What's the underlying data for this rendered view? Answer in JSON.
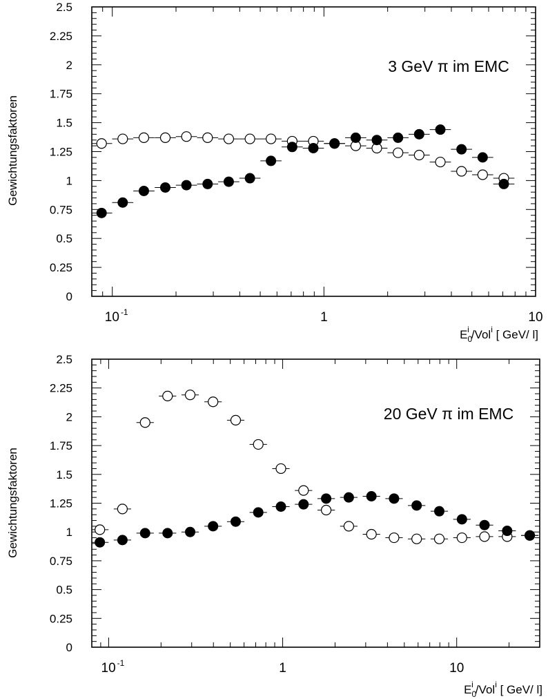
{
  "chart_data": [
    {
      "type": "scatter",
      "title": "",
      "annotation": "3 GeV π im EMC",
      "ylabel": "Gewichtungsfaktoren",
      "xlabel": {
        "base": "E",
        "sub": "0",
        "sup1": "i",
        "mid": "/Vol",
        "sup2": "i",
        "unit": " [ GeV/ l]"
      },
      "xscale": "log",
      "xlim": [
        0.08,
        10
      ],
      "ylim": [
        0,
        2.5
      ],
      "yticks": [
        "0",
        "0.25",
        "0.5",
        "0.75",
        "1",
        "1.25",
        "1.5",
        "1.75",
        "2",
        "2.25",
        "2.5"
      ],
      "xticks": [
        {
          "value": 0.1,
          "base": "10",
          "exp": "-1"
        },
        {
          "value": 1,
          "base": "1",
          "exp": ""
        },
        {
          "value": 10,
          "base": "10",
          "exp": ""
        }
      ],
      "series": [
        {
          "marker": "open-circle",
          "points": [
            [
              0.089,
              1.32
            ],
            [
              0.112,
              1.36
            ],
            [
              0.141,
              1.37
            ],
            [
              0.178,
              1.37
            ],
            [
              0.224,
              1.38
            ],
            [
              0.282,
              1.37
            ],
            [
              0.355,
              1.36
            ],
            [
              0.447,
              1.36
            ],
            [
              0.562,
              1.36
            ],
            [
              0.708,
              1.34
            ],
            [
              0.891,
              1.34
            ],
            [
              1.122,
              1.32
            ],
            [
              1.413,
              1.3
            ],
            [
              1.778,
              1.28
            ],
            [
              2.239,
              1.24
            ],
            [
              2.818,
              1.22
            ],
            [
              3.548,
              1.16
            ],
            [
              4.467,
              1.08
            ],
            [
              5.623,
              1.05
            ],
            [
              7.079,
              1.02
            ]
          ]
        },
        {
          "marker": "filled-circle",
          "points": [
            [
              0.089,
              0.72
            ],
            [
              0.112,
              0.81
            ],
            [
              0.141,
              0.91
            ],
            [
              0.178,
              0.94
            ],
            [
              0.224,
              0.96
            ],
            [
              0.282,
              0.97
            ],
            [
              0.355,
              0.99
            ],
            [
              0.447,
              1.02
            ],
            [
              0.562,
              1.17
            ],
            [
              0.708,
              1.29
            ],
            [
              0.891,
              1.28
            ],
            [
              1.122,
              1.32
            ],
            [
              1.413,
              1.37
            ],
            [
              1.778,
              1.35
            ],
            [
              2.239,
              1.37
            ],
            [
              2.818,
              1.4
            ],
            [
              3.548,
              1.44
            ],
            [
              4.467,
              1.27
            ],
            [
              5.623,
              1.2
            ],
            [
              7.079,
              0.97
            ]
          ]
        }
      ]
    },
    {
      "type": "scatter",
      "title": "",
      "annotation": "20 GeV π im EMC",
      "ylabel": "Gewichtungsfaktoren",
      "xlabel": {
        "base": "E",
        "sub": "0",
        "sup1": "i",
        "mid": "/Vol",
        "sup2": "i",
        "unit": " [ GeV/ l]"
      },
      "xscale": "log",
      "xlim": [
        0.08,
        30
      ],
      "ylim": [
        0,
        2.5
      ],
      "yticks": [
        "0",
        "0.25",
        "0.5",
        "0.75",
        "1",
        "1.25",
        "1.5",
        "1.75",
        "2",
        "2.25",
        "2.5"
      ],
      "xticks": [
        {
          "value": 0.1,
          "base": "10",
          "exp": "-1"
        },
        {
          "value": 1,
          "base": "1",
          "exp": ""
        },
        {
          "value": 10,
          "base": "10",
          "exp": ""
        }
      ],
      "series": [
        {
          "marker": "open-circle",
          "points": [
            [
              0.089,
              1.02
            ],
            [
              0.12,
              1.2
            ],
            [
              0.162,
              1.95
            ],
            [
              0.218,
              2.18
            ],
            [
              0.294,
              2.19
            ],
            [
              0.398,
              2.13
            ],
            [
              0.537,
              1.97
            ],
            [
              0.724,
              1.76
            ],
            [
              0.977,
              1.55
            ],
            [
              1.318,
              1.36
            ],
            [
              1.778,
              1.19
            ],
            [
              2.399,
              1.05
            ],
            [
              3.236,
              0.98
            ],
            [
              4.365,
              0.95
            ],
            [
              5.888,
              0.94
            ],
            [
              7.943,
              0.94
            ],
            [
              10.72,
              0.95
            ],
            [
              14.45,
              0.96
            ],
            [
              19.5,
              0.96
            ],
            [
              26.3,
              0.97
            ]
          ]
        },
        {
          "marker": "filled-circle",
          "points": [
            [
              0.089,
              0.91
            ],
            [
              0.12,
              0.93
            ],
            [
              0.162,
              0.99
            ],
            [
              0.218,
              0.99
            ],
            [
              0.294,
              1.0
            ],
            [
              0.398,
              1.05
            ],
            [
              0.537,
              1.09
            ],
            [
              0.724,
              1.17
            ],
            [
              0.977,
              1.22
            ],
            [
              1.318,
              1.24
            ],
            [
              1.778,
              1.29
            ],
            [
              2.399,
              1.3
            ],
            [
              3.236,
              1.31
            ],
            [
              4.365,
              1.29
            ],
            [
              5.888,
              1.23
            ],
            [
              7.943,
              1.18
            ],
            [
              10.72,
              1.11
            ],
            [
              14.45,
              1.06
            ],
            [
              19.5,
              1.01
            ],
            [
              26.3,
              0.97
            ]
          ]
        }
      ]
    }
  ]
}
